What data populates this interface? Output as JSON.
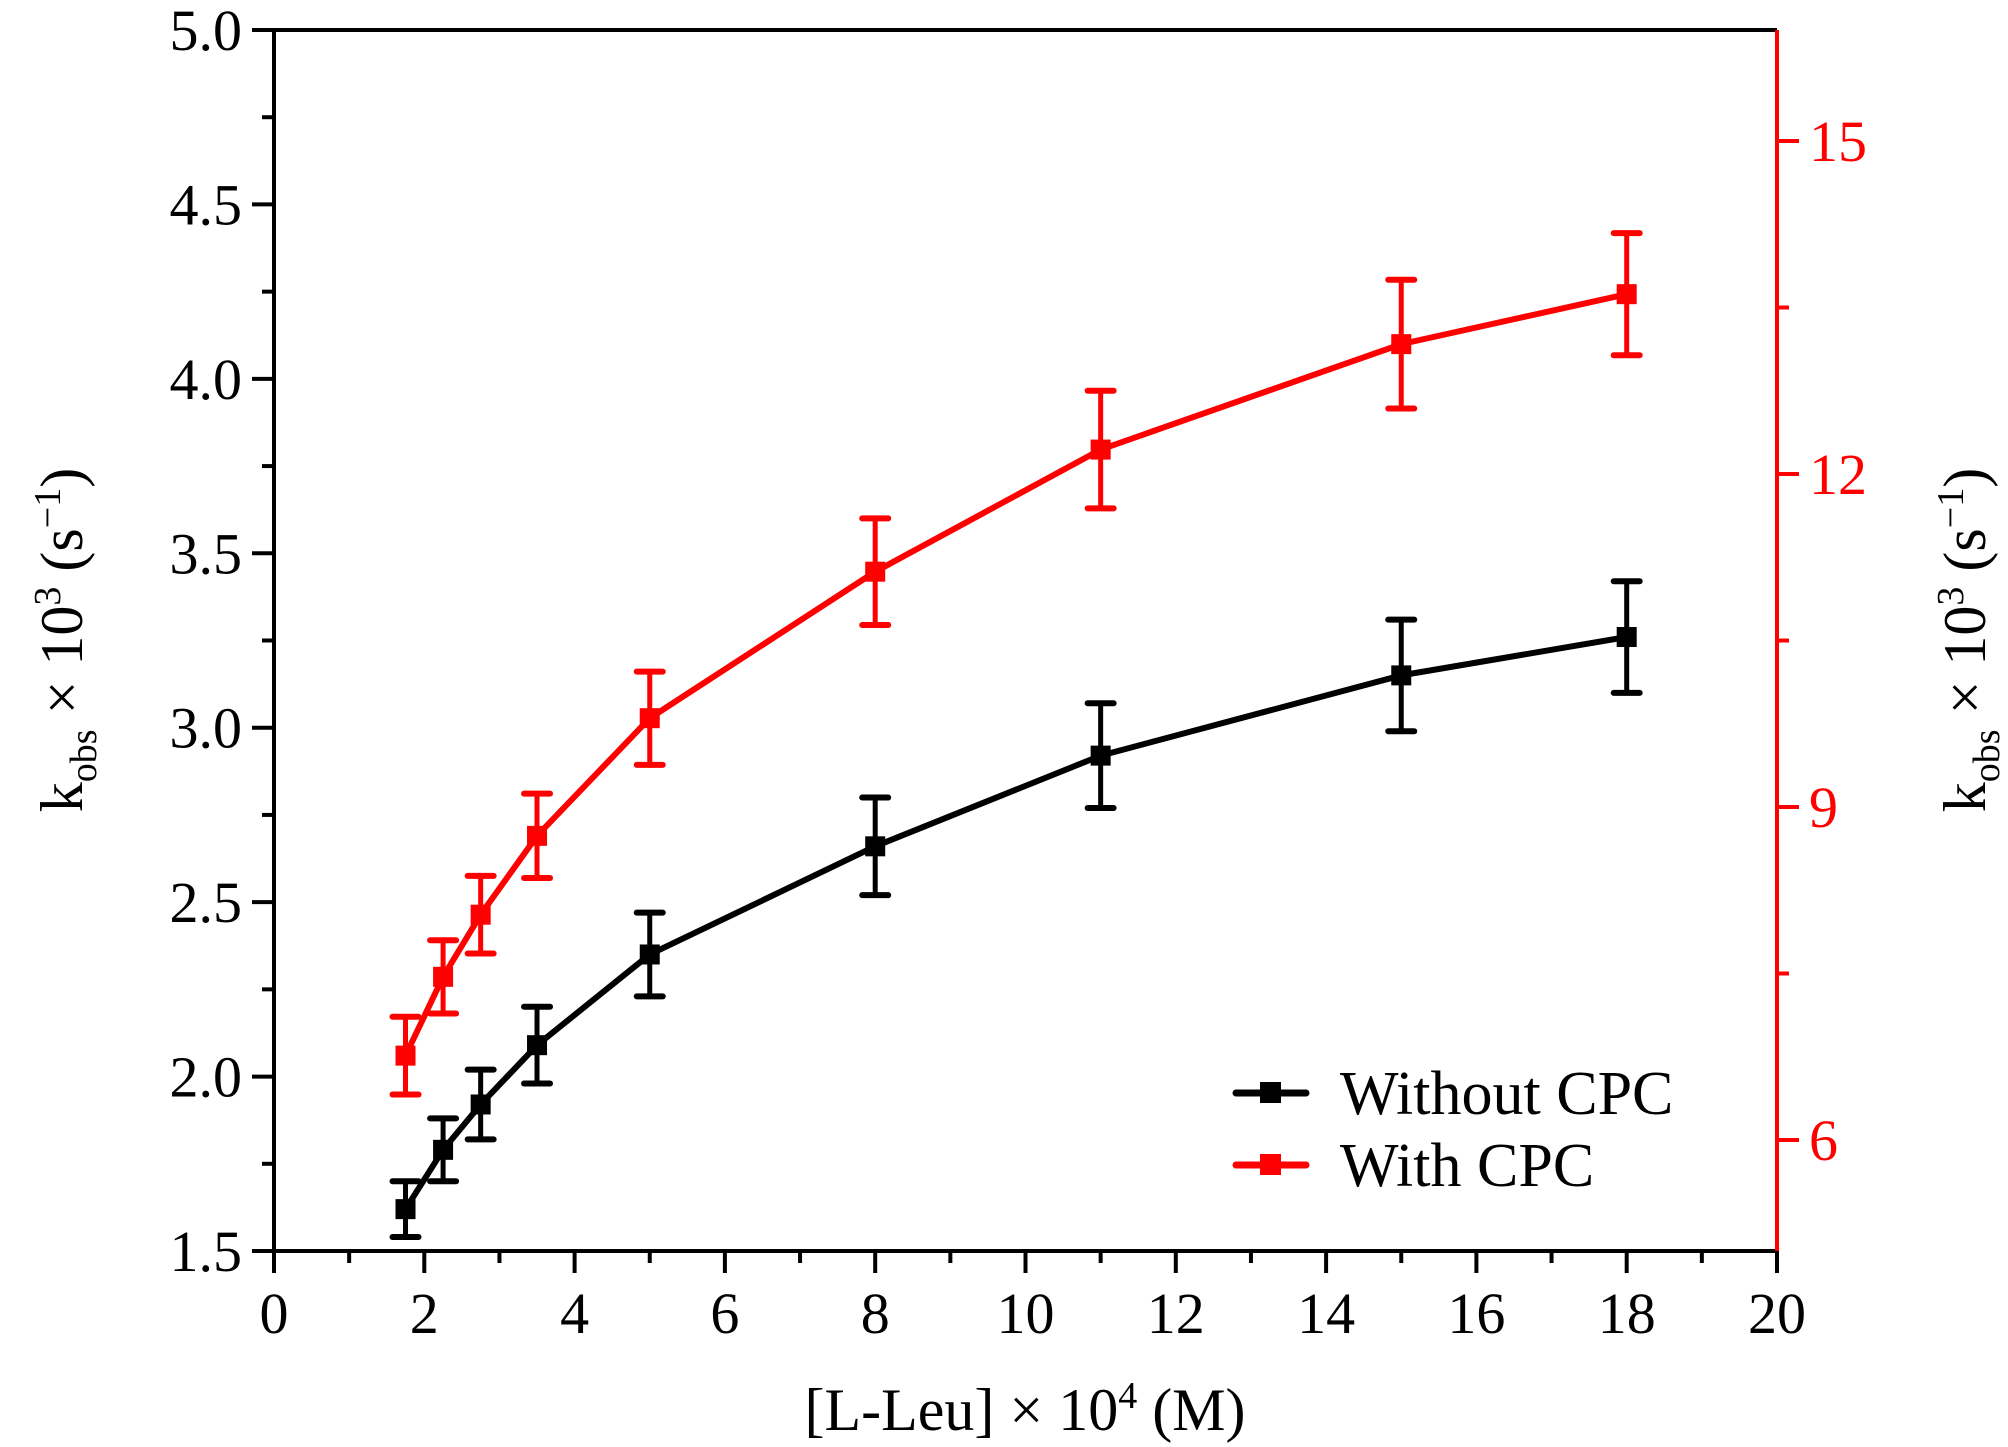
{
  "chart_data": {
    "type": "line",
    "title": "",
    "xlabel": "[L-Leu] × 10⁴ (M)",
    "xlabel_parts": {
      "main": "[L-Leu] × 10",
      "sup": "4",
      "tail": " (M)"
    },
    "ylabel_left_parts": {
      "k": "k",
      "sub": "obs",
      "mid": " × 10",
      "sup": "3",
      "unit_open": " (s",
      "unit_sup": "−1",
      "unit_close": ")"
    },
    "ylabel_right_parts": {
      "k": "k",
      "sub": "obs",
      "mid": " × 10",
      "sup": "3",
      "unit_open": " (s",
      "unit_sup": "−1",
      "unit_close": ")"
    },
    "xlim": [
      0,
      20
    ],
    "ylim_left": [
      1.5,
      5.0
    ],
    "ylim_right": [
      5,
      16
    ],
    "x_ticks": [
      0,
      2,
      4,
      6,
      8,
      10,
      12,
      14,
      16,
      18,
      20
    ],
    "x_tick_labels": [
      "0",
      "2",
      "4",
      "6",
      "8",
      "10",
      "12",
      "14",
      "16",
      "18",
      "20"
    ],
    "y_left_ticks": [
      1.5,
      2.0,
      2.5,
      3.0,
      3.5,
      4.0,
      4.5,
      5.0
    ],
    "y_left_tick_labels": [
      "1.5",
      "2.0",
      "2.5",
      "3.0",
      "3.5",
      "4.0",
      "4.5",
      "5.0"
    ],
    "y_right_ticks": [
      6,
      9,
      12,
      15
    ],
    "y_right_tick_labels": [
      "6",
      "9",
      "12",
      "15"
    ],
    "grid": false,
    "legend_position": "bottom-right",
    "x": [
      1.75,
      2.25,
      2.75,
      3.5,
      5,
      8,
      11,
      15,
      18
    ],
    "series": [
      {
        "name": "Without CPC",
        "axis": "left",
        "color": "#000000",
        "values": [
          1.62,
          1.79,
          1.92,
          2.09,
          2.35,
          2.66,
          2.92,
          3.15,
          3.26
        ],
        "errors": [
          0.08,
          0.09,
          0.1,
          0.11,
          0.12,
          0.14,
          0.15,
          0.16,
          0.16
        ]
      },
      {
        "name": "With CPC",
        "axis": "right",
        "color": "#ff0000",
        "values": [
          6.76,
          7.47,
          8.03,
          8.74,
          9.8,
          11.12,
          12.22,
          13.17,
          13.62
        ],
        "errors": [
          0.35,
          0.33,
          0.35,
          0.38,
          0.42,
          0.48,
          0.53,
          0.58,
          0.55
        ]
      }
    ]
  },
  "colors": {
    "left_axis": "#000000",
    "right_axis": "#ff0000"
  }
}
